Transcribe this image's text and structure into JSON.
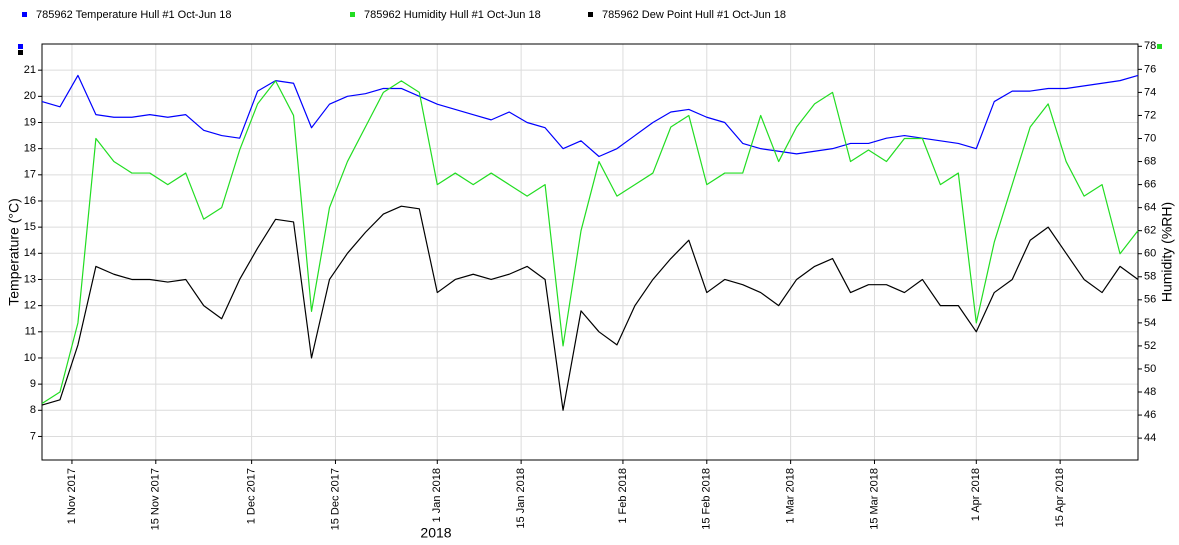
{
  "chart_data": {
    "type": "line",
    "x_label": "2018",
    "y_label": "Temperature (°C)",
    "y2_label": "Humidity (%RH)",
    "x": [
      "2017-10-27",
      "2017-10-30",
      "2017-11-02",
      "2017-11-05",
      "2017-11-08",
      "2017-11-11",
      "2017-11-14",
      "2017-11-17",
      "2017-11-20",
      "2017-11-23",
      "2017-11-26",
      "2017-11-29",
      "2017-12-02",
      "2017-12-05",
      "2017-12-08",
      "2017-12-11",
      "2017-12-14",
      "2017-12-17",
      "2017-12-20",
      "2017-12-23",
      "2017-12-26",
      "2017-12-29",
      "2018-01-01",
      "2018-01-04",
      "2018-01-07",
      "2018-01-10",
      "2018-01-13",
      "2018-01-16",
      "2018-01-19",
      "2018-01-22",
      "2018-01-25",
      "2018-01-28",
      "2018-01-31",
      "2018-02-03",
      "2018-02-06",
      "2018-02-09",
      "2018-02-12",
      "2018-02-15",
      "2018-02-18",
      "2018-02-21",
      "2018-02-24",
      "2018-02-27",
      "2018-03-02",
      "2018-03-05",
      "2018-03-08",
      "2018-03-11",
      "2018-03-14",
      "2018-03-17",
      "2018-03-20",
      "2018-03-23",
      "2018-03-26",
      "2018-03-29",
      "2018-04-01",
      "2018-04-04",
      "2018-04-07",
      "2018-04-10",
      "2018-04-13",
      "2018-04-16",
      "2018-04-19",
      "2018-04-22",
      "2018-04-25",
      "2018-04-28"
    ],
    "series": [
      {
        "name": "785962  Temperature Hull #1 Oct-Jun 18",
        "color": "#0000ff",
        "axis": "y",
        "values": [
          19.8,
          19.6,
          20.8,
          19.3,
          19.2,
          19.2,
          19.3,
          19.2,
          19.3,
          18.7,
          18.5,
          18.4,
          20.2,
          20.6,
          20.5,
          18.8,
          19.7,
          20.0,
          20.1,
          20.3,
          20.3,
          20.0,
          19.7,
          19.5,
          19.3,
          19.1,
          19.4,
          19.0,
          18.8,
          18.0,
          18.3,
          17.7,
          18.0,
          18.5,
          19.0,
          19.4,
          19.5,
          19.2,
          19.0,
          18.2,
          18.0,
          17.9,
          17.8,
          17.9,
          18.0,
          18.2,
          18.2,
          18.4,
          18.5,
          18.4,
          18.3,
          18.2,
          18.0,
          19.8,
          20.2,
          20.2,
          20.3,
          20.3,
          20.4,
          20.5,
          20.6,
          20.8
        ]
      },
      {
        "name": "785962  Humidity Hull #1 Oct-Jun 18",
        "color": "#22dd22",
        "axis": "y2",
        "values": [
          47,
          48,
          54,
          70,
          68,
          67,
          67,
          66,
          67,
          63,
          64,
          69,
          73,
          75,
          72,
          55,
          64,
          68,
          71,
          74,
          75,
          74,
          66,
          67,
          66,
          67,
          66,
          65,
          66,
          52,
          62,
          68,
          65,
          66,
          67,
          71,
          72,
          66,
          67,
          67,
          72,
          68,
          71,
          73,
          74,
          68,
          69,
          68,
          70,
          70,
          66,
          67,
          54,
          61,
          66,
          71,
          73,
          68,
          65,
          66,
          60,
          62
        ]
      },
      {
        "name": "785962  Dew Point Hull #1 Oct-Jun 18",
        "color": "#000000",
        "axis": "y",
        "values": [
          8.2,
          8.4,
          10.5,
          13.5,
          13.2,
          13.0,
          13.0,
          12.9,
          13.0,
          12.0,
          11.5,
          13.0,
          14.2,
          15.3,
          15.2,
          10.0,
          13.0,
          14.0,
          14.8,
          15.5,
          15.8,
          15.7,
          12.5,
          13.0,
          13.2,
          13.0,
          13.2,
          13.5,
          13.0,
          8.0,
          11.8,
          11.0,
          10.5,
          12.0,
          13.0,
          13.8,
          14.5,
          12.5,
          13.0,
          12.8,
          12.5,
          12.0,
          13.0,
          13.5,
          13.8,
          12.5,
          12.8,
          12.8,
          12.5,
          13.0,
          12.0,
          12.0,
          11.0,
          12.5,
          13.0,
          14.5,
          15.0,
          14.0,
          13.0,
          12.5,
          13.5,
          13.0
        ]
      }
    ],
    "xlim": [
      "2017-10-27",
      "2018-04-28"
    ],
    "xticks": [
      {
        "value": "2017-11-01",
        "label": "1 Nov 2017"
      },
      {
        "value": "2017-11-15",
        "label": "15 Nov 2017"
      },
      {
        "value": "2017-12-01",
        "label": "1 Dec 2017"
      },
      {
        "value": "2017-12-15",
        "label": "15 Dec 2017"
      },
      {
        "value": "2018-01-01",
        "label": "1 Jan 2018"
      },
      {
        "value": "2018-01-15",
        "label": "15 Jan 2018"
      },
      {
        "value": "2018-02-01",
        "label": "1 Feb 2018"
      },
      {
        "value": "2018-02-15",
        "label": "15 Feb 2018"
      },
      {
        "value": "2018-03-01",
        "label": "1 Mar 2018"
      },
      {
        "value": "2018-03-15",
        "label": "15 Mar 2018"
      },
      {
        "value": "2018-04-01",
        "label": "1 Apr 2018"
      },
      {
        "value": "2018-04-15",
        "label": "15 Apr 2018"
      }
    ],
    "ylim": [
      6.1,
      22
    ],
    "yticks": [
      7,
      8,
      9,
      10,
      11,
      12,
      13,
      14,
      15,
      16,
      17,
      18,
      19,
      20,
      21
    ],
    "y2lim": [
      42.1,
      78.2
    ],
    "y2ticks": [
      44,
      46,
      48,
      50,
      52,
      54,
      56,
      58,
      60,
      62,
      64,
      66,
      68,
      70,
      72,
      74,
      76,
      78
    ],
    "grid": true
  }
}
